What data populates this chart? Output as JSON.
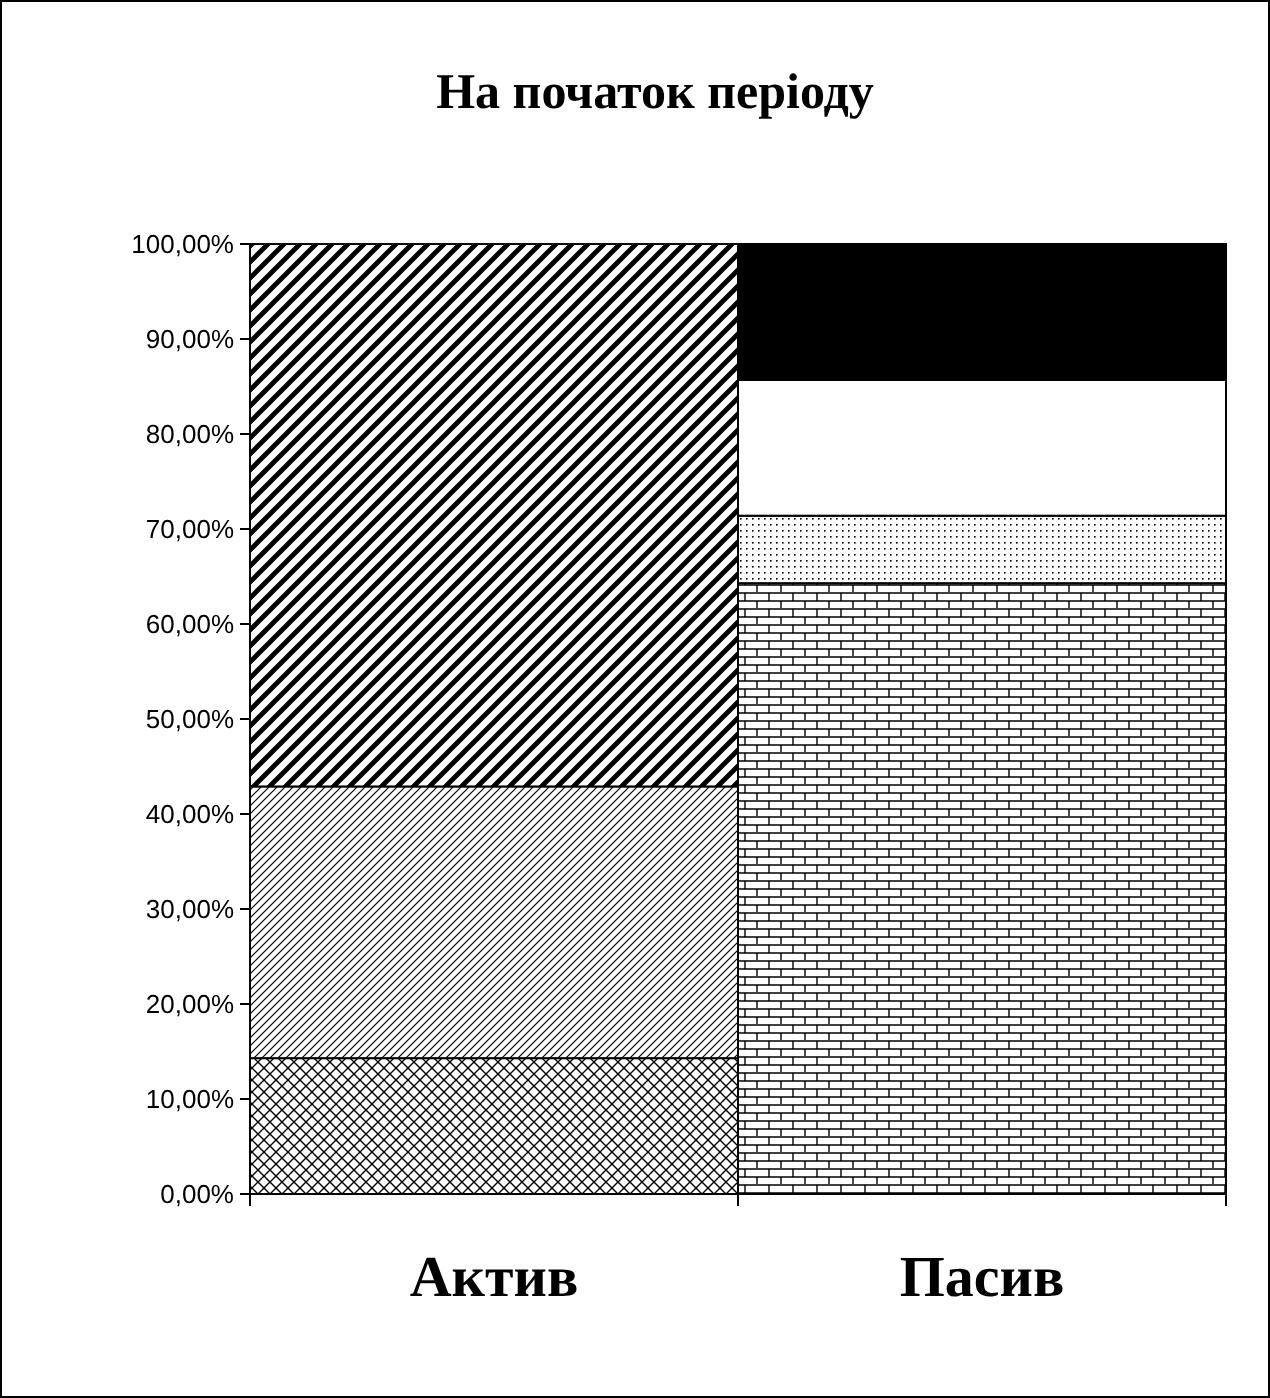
{
  "chart_data": {
    "type": "bar",
    "title": "На початок періоду",
    "categories": [
      "Актив",
      "Пасив"
    ],
    "stacked": true,
    "series": [
      {
        "color": "#000000",
        "values": [
          14.3,
          null
        ]
      },
      {
        "color": "#000000",
        "values": [
          28.6,
          null
        ]
      },
      {
        "color": "#000000",
        "values": [
          57.1,
          null
        ]
      },
      {
        "color": "#000000",
        "values": [
          null,
          64.3
        ]
      },
      {
        "color": "#000000",
        "values": [
          null,
          7.1
        ]
      },
      {
        "color": "#ffffff",
        "values": [
          null,
          14.3
        ]
      },
      {
        "color": "#000000",
        "values": [
          null,
          14.3
        ]
      }
    ],
    "ylim": [
      0,
      100
    ],
    "yticks": [
      {
        "value": 0,
        "label": "0,00%"
      },
      {
        "value": 10,
        "label": "10,00%"
      },
      {
        "value": 20,
        "label": "20,00%"
      },
      {
        "value": 30,
        "label": "30,00%"
      },
      {
        "value": 40,
        "label": "40,00%"
      },
      {
        "value": 50,
        "label": "50,00%"
      },
      {
        "value": 60,
        "label": "60,00%"
      },
      {
        "value": 70,
        "label": "70,00%"
      },
      {
        "value": 80,
        "label": "80,00%"
      },
      {
        "value": 90,
        "label": "90,00%"
      },
      {
        "value": 100,
        "label": "100,00%"
      }
    ],
    "tick_labels": "xy"
  }
}
